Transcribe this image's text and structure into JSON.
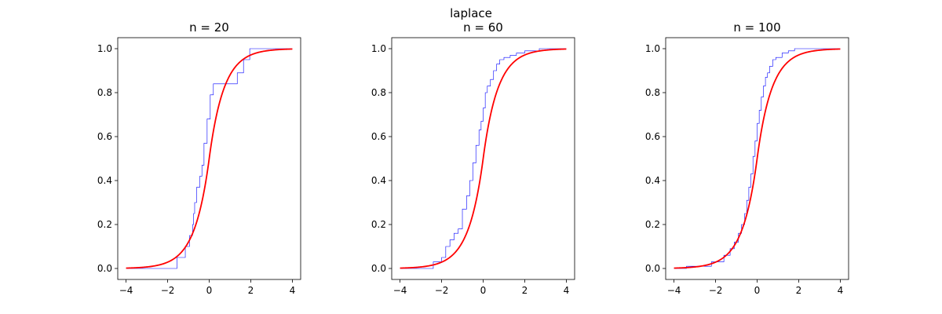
{
  "figure": {
    "title": "laplace"
  },
  "colors": {
    "ecdf": "#0000ff",
    "cdf": "#ff0000",
    "axes": "#000000",
    "background": "#ffffff"
  },
  "chart_data": [
    {
      "type": "line",
      "title": "n = 20",
      "xlabel": "",
      "ylabel": "",
      "xlim": [
        -4.4,
        4.4
      ],
      "ylim": [
        -0.05,
        1.05
      ],
      "xticks": [
        -4,
        -2,
        0,
        2,
        4
      ],
      "yticks": [
        0.0,
        0.2,
        0.4,
        0.6,
        0.8,
        1.0
      ],
      "xtick_labels": [
        "−4",
        "−2",
        "0",
        "2",
        "4"
      ],
      "ytick_labels": [
        "0.0",
        "0.2",
        "0.4",
        "0.6",
        "0.8",
        "1.0"
      ],
      "grid": false,
      "series": [
        {
          "kind": "step",
          "color": "#0000ff",
          "x": [
            -4.0,
            -1.55,
            -1.15,
            -0.95,
            -0.8,
            -0.75,
            -0.7,
            -0.6,
            -0.45,
            -0.35,
            -0.25,
            -0.1,
            0.05,
            0.2,
            0.35,
            1.35,
            1.65,
            1.95,
            4.0
          ],
          "y": [
            0.0,
            0.05,
            0.1,
            0.15,
            0.2,
            0.25,
            0.3,
            0.37,
            0.42,
            0.47,
            0.57,
            0.68,
            0.79,
            0.84,
            0.84,
            0.89,
            0.95,
            1.0,
            1.0
          ]
        },
        {
          "kind": "laplace-cdf",
          "color": "#ff0000",
          "loc": 0,
          "scale": 0.7,
          "x_range": [
            -4,
            4
          ]
        }
      ]
    },
    {
      "type": "line",
      "title": "n = 60",
      "xlabel": "",
      "ylabel": "",
      "xlim": [
        -4.4,
        4.4
      ],
      "ylim": [
        -0.05,
        1.05
      ],
      "xticks": [
        -4,
        -2,
        0,
        2,
        4
      ],
      "yticks": [
        0.0,
        0.2,
        0.4,
        0.6,
        0.8,
        1.0
      ],
      "xtick_labels": [
        "−4",
        "−2",
        "0",
        "2",
        "4"
      ],
      "ytick_labels": [
        "0.0",
        "0.2",
        "0.4",
        "0.6",
        "0.8",
        "1.0"
      ],
      "grid": false,
      "series": [
        {
          "kind": "step",
          "color": "#0000ff",
          "x": [
            -4.0,
            -2.4,
            -2.0,
            -1.8,
            -1.6,
            -1.4,
            -1.2,
            -1.0,
            -0.8,
            -0.65,
            -0.5,
            -0.35,
            -0.2,
            -0.1,
            0.0,
            0.1,
            0.2,
            0.35,
            0.5,
            0.65,
            0.8,
            1.0,
            1.3,
            1.6,
            2.0,
            2.7,
            4.0
          ],
          "y": [
            0.0,
            0.03,
            0.05,
            0.1,
            0.13,
            0.16,
            0.18,
            0.27,
            0.33,
            0.4,
            0.48,
            0.56,
            0.63,
            0.67,
            0.73,
            0.8,
            0.83,
            0.86,
            0.9,
            0.93,
            0.95,
            0.96,
            0.97,
            0.98,
            0.99,
            1.0,
            1.0
          ]
        },
        {
          "kind": "laplace-cdf",
          "color": "#ff0000",
          "loc": 0,
          "scale": 0.7,
          "x_range": [
            -4,
            4
          ]
        }
      ]
    },
    {
      "type": "line",
      "title": "n = 100",
      "xlabel": "",
      "ylabel": "",
      "xlim": [
        -4.4,
        4.4
      ],
      "ylim": [
        -0.05,
        1.05
      ],
      "xticks": [
        -4,
        -2,
        0,
        2,
        4
      ],
      "yticks": [
        0.0,
        0.2,
        0.4,
        0.6,
        0.8,
        1.0
      ],
      "xtick_labels": [
        "−4",
        "−2",
        "0",
        "2",
        "4"
      ],
      "ytick_labels": [
        "0.0",
        "0.2",
        "0.4",
        "0.6",
        "0.8",
        "1.0"
      ],
      "grid": false,
      "series": [
        {
          "kind": "step",
          "color": "#0000ff",
          "x": [
            -4.0,
            -3.4,
            -2.2,
            -1.6,
            -1.3,
            -1.1,
            -0.9,
            -0.75,
            -0.6,
            -0.5,
            -0.4,
            -0.3,
            -0.2,
            -0.1,
            0.0,
            0.1,
            0.2,
            0.3,
            0.4,
            0.5,
            0.6,
            0.75,
            0.9,
            1.2,
            1.5,
            1.8,
            2.2,
            4.0
          ],
          "y": [
            0.0,
            0.01,
            0.03,
            0.06,
            0.09,
            0.12,
            0.16,
            0.2,
            0.25,
            0.31,
            0.37,
            0.43,
            0.51,
            0.58,
            0.66,
            0.72,
            0.78,
            0.83,
            0.87,
            0.89,
            0.92,
            0.95,
            0.96,
            0.98,
            0.99,
            1.0,
            1.0,
            1.0
          ]
        },
        {
          "kind": "laplace-cdf",
          "color": "#ff0000",
          "loc": 0,
          "scale": 0.7,
          "x_range": [
            -4,
            4
          ]
        }
      ]
    }
  ]
}
